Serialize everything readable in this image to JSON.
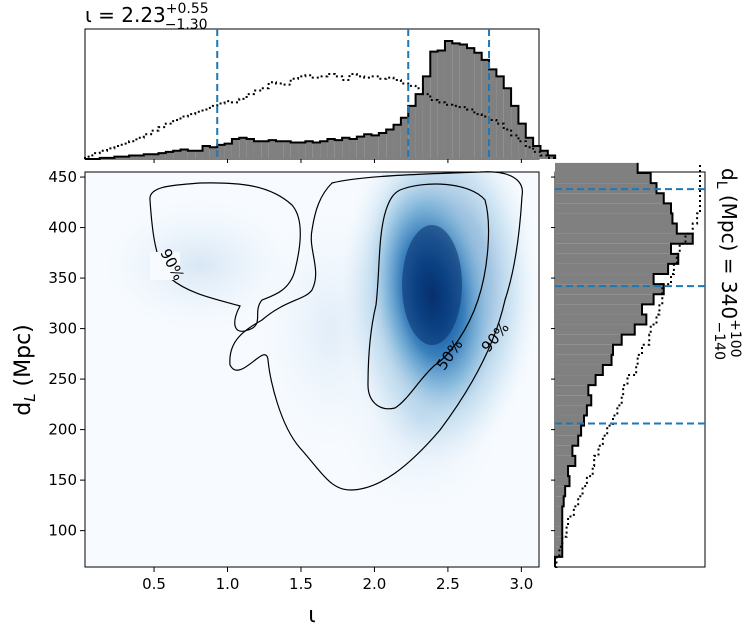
{
  "chart_data": [
    {
      "id": "top-marginal",
      "type": "histogram",
      "title": {
        "prefix": "ι = 2.23",
        "sup": "+0.55",
        "sub": "−1.30"
      },
      "x_range": [
        0.03,
        3.12
      ],
      "bin_start": 0.03,
      "bin_width": 0.05,
      "posterior_heights": [
        0.0,
        0.0,
        0.01,
        0.01,
        0.02,
        0.02,
        0.03,
        0.03,
        0.04,
        0.04,
        0.05,
        0.06,
        0.07,
        0.08,
        0.07,
        0.07,
        0.11,
        0.1,
        0.12,
        0.13,
        0.17,
        0.18,
        0.17,
        0.15,
        0.15,
        0.16,
        0.15,
        0.15,
        0.14,
        0.14,
        0.15,
        0.14,
        0.15,
        0.17,
        0.16,
        0.18,
        0.17,
        0.19,
        0.21,
        0.2,
        0.22,
        0.25,
        0.29,
        0.35,
        0.45,
        0.55,
        0.7,
        0.91,
        0.92,
        1.0,
        0.98,
        0.97,
        0.94,
        0.9,
        0.84,
        0.76,
        0.7,
        0.6,
        0.45,
        0.3,
        0.18,
        0.11,
        0.07,
        0.03
      ],
      "prior_heights": [
        0.02,
        0.05,
        0.07,
        0.09,
        0.11,
        0.13,
        0.15,
        0.18,
        0.21,
        0.24,
        0.27,
        0.3,
        0.33,
        0.36,
        0.38,
        0.4,
        0.42,
        0.45,
        0.47,
        0.49,
        0.48,
        0.51,
        0.55,
        0.58,
        0.6,
        0.65,
        0.64,
        0.63,
        0.68,
        0.7,
        0.71,
        0.69,
        0.7,
        0.72,
        0.7,
        0.67,
        0.72,
        0.7,
        0.69,
        0.7,
        0.68,
        0.69,
        0.67,
        0.64,
        0.62,
        0.6,
        0.55,
        0.5,
        0.48,
        0.46,
        0.45,
        0.44,
        0.42,
        0.38,
        0.36,
        0.33,
        0.3,
        0.25,
        0.2,
        0.15,
        0.1,
        0.06,
        0.03,
        0.01
      ],
      "lines": [
        0.93,
        2.23,
        2.78
      ]
    },
    {
      "id": "joint-kde",
      "type": "heatmap",
      "xlabel": "ι",
      "ylabel": "d_L (Mpc)",
      "xlim": [
        0.03,
        3.12
      ],
      "ylim": [
        64,
        455
      ],
      "x_ticks": [
        "0.5",
        "1.0",
        "1.5",
        "2.0",
        "2.5",
        "3.0"
      ],
      "y_ticks": [
        "100",
        "150",
        "200",
        "250",
        "300",
        "350",
        "400",
        "450"
      ],
      "contour_labels": [
        "90%",
        "50%",
        "90%"
      ],
      "colormap": {
        "low": "#f7fbff",
        "high": "#08306b"
      },
      "contour_color": "#000000"
    },
    {
      "id": "right-marginal",
      "type": "histogram",
      "orientation": "horizontal",
      "title": {
        "prefix": "d",
        "sub_main": "L",
        "middle": " (Mpc) = 340",
        "sup": "+100",
        "sub": "−140"
      },
      "y_range": [
        64,
        455
      ],
      "bin_start": 64,
      "bin_width": 10,
      "posterior_heights": [
        0.0,
        0.05,
        0.05,
        0.05,
        0.05,
        0.05,
        0.06,
        0.07,
        0.1,
        0.09,
        0.14,
        0.12,
        0.16,
        0.18,
        0.2,
        0.22,
        0.25,
        0.23,
        0.28,
        0.33,
        0.39,
        0.4,
        0.46,
        0.55,
        0.63,
        0.6,
        0.68,
        0.75,
        0.68,
        0.78,
        0.85,
        0.8,
        0.95,
        0.84,
        0.81,
        0.8,
        0.75,
        0.7,
        0.66,
        0.57
      ],
      "prior_heights": [
        0.01,
        0.03,
        0.05,
        0.08,
        0.09,
        0.13,
        0.16,
        0.19,
        0.22,
        0.26,
        0.27,
        0.3,
        0.33,
        0.36,
        0.4,
        0.43,
        0.46,
        0.47,
        0.5,
        0.56,
        0.57,
        0.6,
        0.65,
        0.66,
        0.7,
        0.72,
        0.74,
        0.74,
        0.8,
        0.82,
        0.84,
        0.86,
        0.9,
        0.95,
        0.98,
        1.0,
        1.0,
        1.0,
        1.0,
        1.0
      ],
      "lines": [
        206,
        342,
        438
      ]
    }
  ],
  "colors": {
    "posterior_fill": "#808080",
    "outline": "#000000",
    "dashed_lines": "#1f77b4"
  }
}
